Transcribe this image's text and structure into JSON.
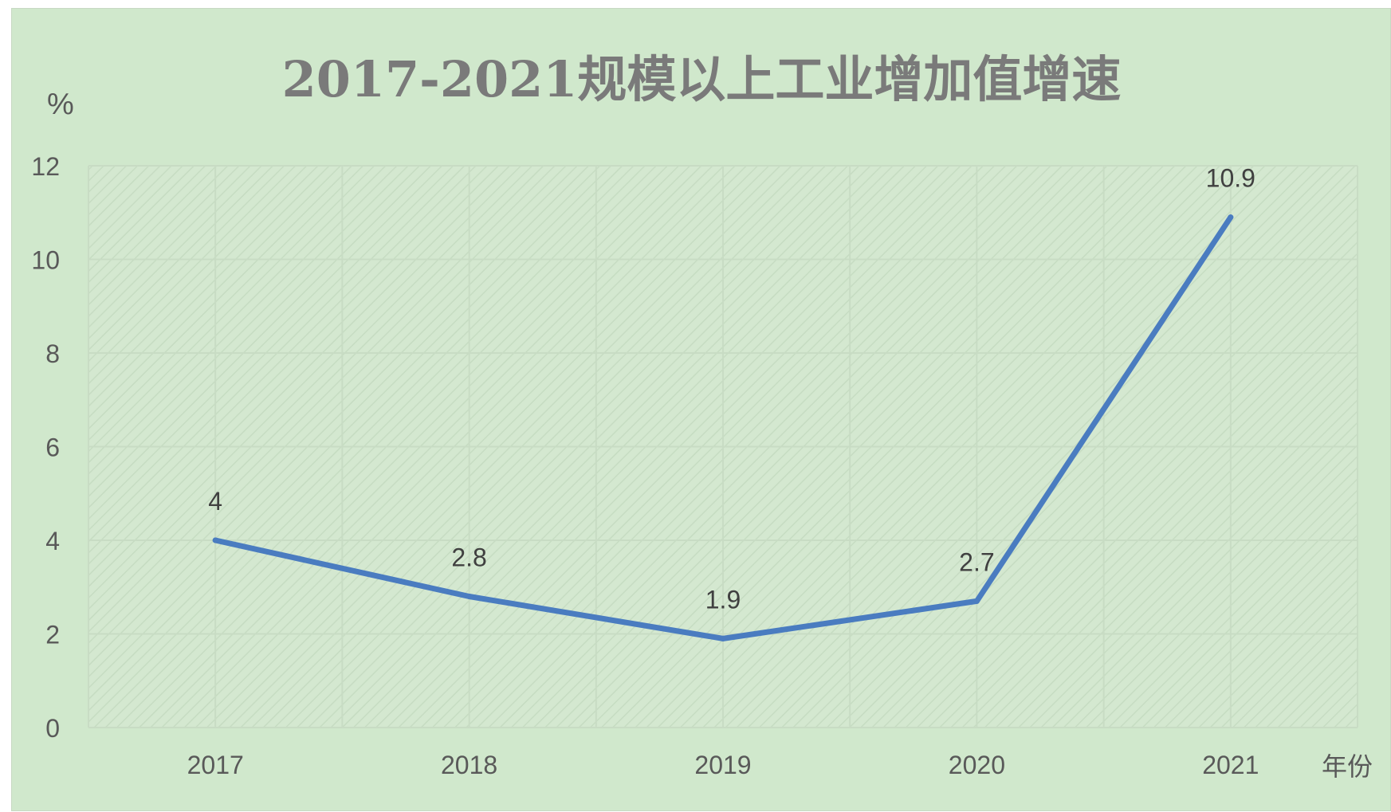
{
  "chart_data": {
    "type": "line",
    "title": "2017-2021规模以上工业增加值增速",
    "xlabel": "年份",
    "ylabel": "%",
    "categories": [
      "2017",
      "2018",
      "2019",
      "2020",
      "2021"
    ],
    "series": [
      {
        "values": [
          4,
          2.8,
          1.9,
          2.7,
          10.9
        ],
        "color": "#4a7cc0"
      }
    ],
    "data_labels": [
      "4",
      "2.8",
      "1.9",
      "2.7",
      "10.9"
    ],
    "ylim": [
      0,
      12
    ],
    "yticks": [
      "0",
      "2",
      "4",
      "6",
      "8",
      "10",
      "12"
    ],
    "grid": true,
    "plot_background": "#d4e8d0",
    "chart_background": "#d0e8cc",
    "gridline_color": "#c8dcc4"
  }
}
